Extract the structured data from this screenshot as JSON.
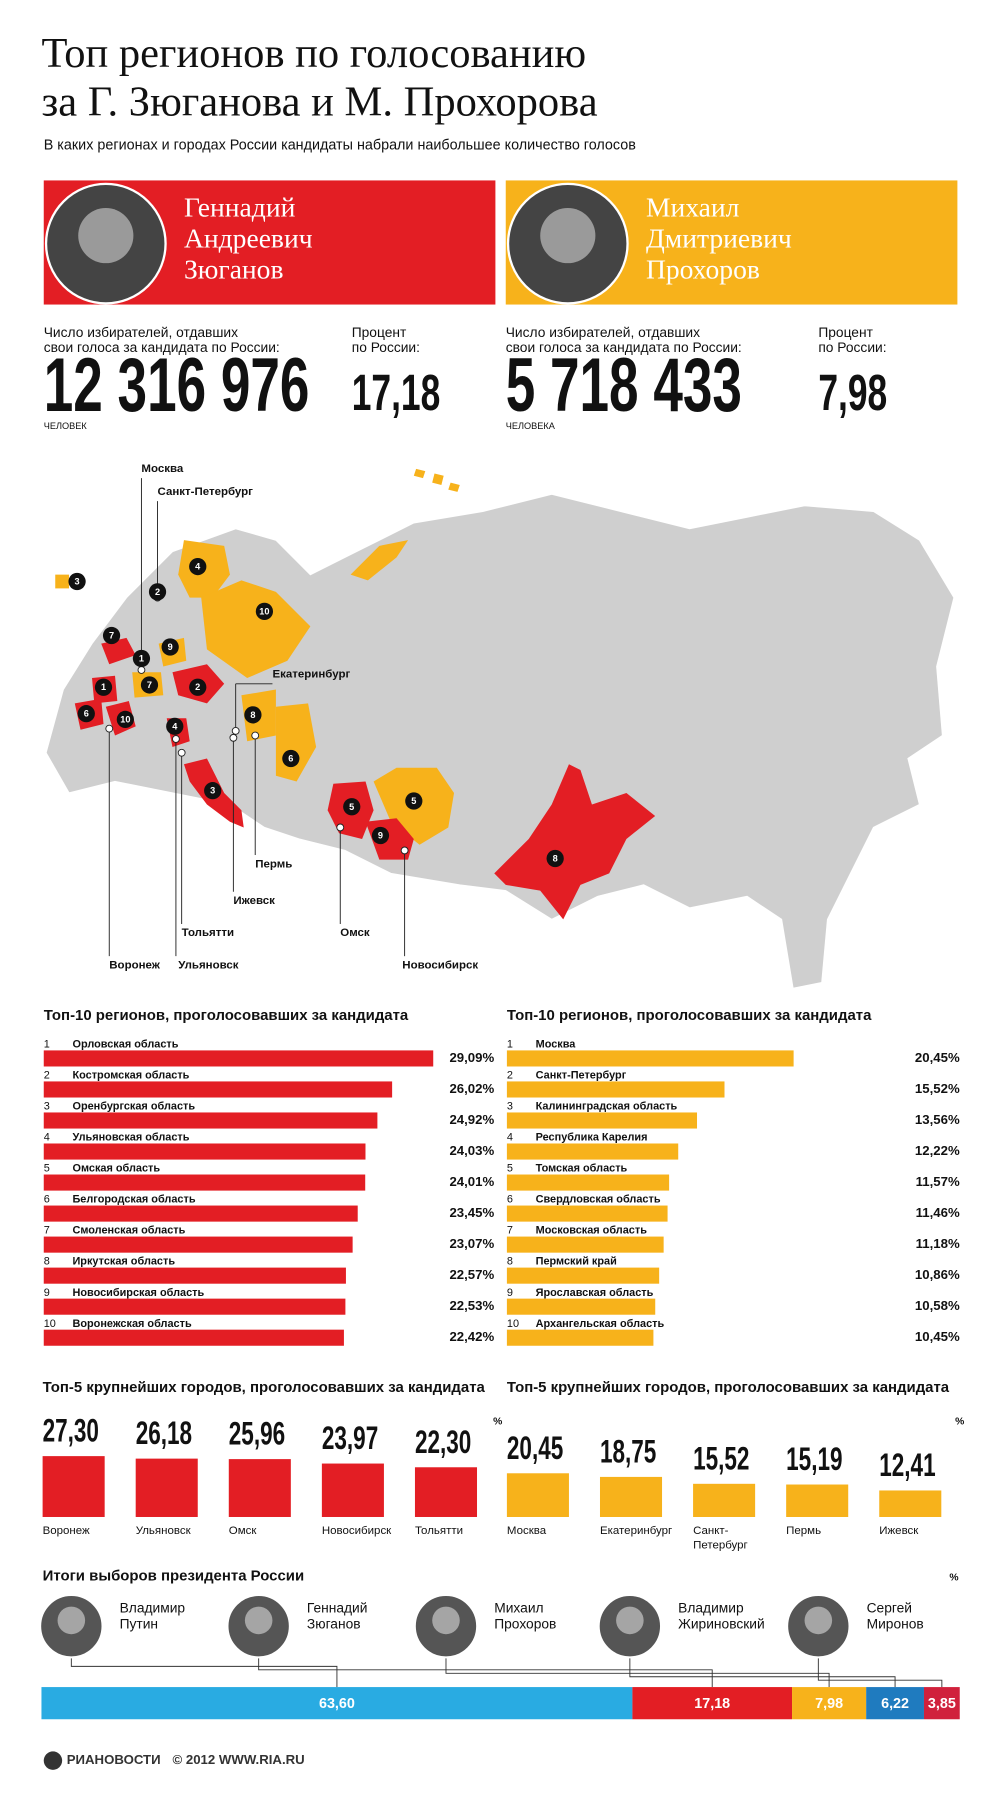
{
  "header": {
    "title": [
      "Топ регионов по голосованию",
      "за Г. Зюганова и М. Прохорова"
    ],
    "subtitle": "В каких регионах и городах России кандидаты набрали наибольшее количество голосов"
  },
  "candidates": [
    {
      "name": [
        "Геннадий",
        "Андреевич",
        "Зюганов"
      ],
      "color": "#e31e24",
      "voters_caption": [
        "Число избирателей, отдавших",
        "свои голоса за кандидата по России:"
      ],
      "voters": 12316976,
      "voters_label": "12 316 976",
      "voters_unit": "ЧЕЛОВЕК",
      "percent_caption": [
        "Процент",
        "по России:"
      ],
      "percent": 17.18,
      "percent_label": "17,18"
    },
    {
      "name": [
        "Михаил",
        "Дмитриевич",
        "Прохоров"
      ],
      "color": "#f7b21b",
      "voters_caption": [
        "Число избирателей, отдавших",
        "свои голоса за кандидата по России:"
      ],
      "voters": 5718433,
      "voters_label": "5 718 433",
      "voters_unit": "ЧЕЛОВЕКА",
      "percent_caption": [
        "Процент",
        "по России:"
      ],
      "percent": 7.98,
      "percent_label": "7,98"
    }
  ],
  "map": {
    "cities": [
      "Москва",
      "Санкт-Петербург",
      "Екатеринбург",
      "Пермь",
      "Ижевск",
      "Тольятти",
      "Ульяновск",
      "Воронеж",
      "Омск",
      "Новосибирск"
    ]
  },
  "top_regions": [
    {
      "title": "Топ-10 регионов, проголосовавших за кандидата",
      "color": "#e31e24",
      "items": [
        {
          "rank": 1,
          "name": "Орловская область",
          "value": 29.09,
          "value_label": "29,09%"
        },
        {
          "rank": 2,
          "name": "Костромская область",
          "value": 26.02,
          "value_label": "26,02%"
        },
        {
          "rank": 3,
          "name": "Оренбургская область",
          "value": 24.92,
          "value_label": "24,92%"
        },
        {
          "rank": 4,
          "name": "Ульяновская область",
          "value": 24.03,
          "value_label": "24,03%"
        },
        {
          "rank": 5,
          "name": "Омская область",
          "value": 24.01,
          "value_label": "24,01%"
        },
        {
          "rank": 6,
          "name": "Белгородская область",
          "value": 23.45,
          "value_label": "23,45%"
        },
        {
          "rank": 7,
          "name": "Смоленская область",
          "value": 23.07,
          "value_label": "23,07%"
        },
        {
          "rank": 8,
          "name": "Иркутская область",
          "value": 22.57,
          "value_label": "22,57%"
        },
        {
          "rank": 9,
          "name": "Новосибирская область",
          "value": 22.53,
          "value_label": "22,53%"
        },
        {
          "rank": 10,
          "name": "Воронежская область",
          "value": 22.42,
          "value_label": "22,42%"
        }
      ]
    },
    {
      "title": "Топ-10 регионов, проголосовавших за кандидата",
      "color": "#f7b21b",
      "items": [
        {
          "rank": 1,
          "name": "Москва",
          "value": 20.45,
          "value_label": "20,45%"
        },
        {
          "rank": 2,
          "name": "Санкт-Петербург",
          "value": 15.52,
          "value_label": "15,52%"
        },
        {
          "rank": 3,
          "name": "Калининградская область",
          "value": 13.56,
          "value_label": "13,56%"
        },
        {
          "rank": 4,
          "name": "Республика Карелия",
          "value": 12.22,
          "value_label": "12,22%"
        },
        {
          "rank": 5,
          "name": "Томская область",
          "value": 11.57,
          "value_label": "11,57%"
        },
        {
          "rank": 6,
          "name": "Свердловская область",
          "value": 11.46,
          "value_label": "11,46%"
        },
        {
          "rank": 7,
          "name": "Московская область",
          "value": 11.18,
          "value_label": "11,18%"
        },
        {
          "rank": 8,
          "name": "Пермский край",
          "value": 10.86,
          "value_label": "10,86%"
        },
        {
          "rank": 9,
          "name": "Ярославская область",
          "value": 10.58,
          "value_label": "10,58%"
        },
        {
          "rank": 10,
          "name": "Архангельская область",
          "value": 10.45,
          "value_label": "10,45%"
        }
      ]
    }
  ],
  "top_cities": [
    {
      "title": "Топ-5 крупнейших городов, проголосовавших за кандидата",
      "unit": "%",
      "color": "#e31e24",
      "items": [
        {
          "name": "Воронеж",
          "value": 27.3,
          "value_label": "27,30"
        },
        {
          "name": "Ульяновск",
          "value": 26.18,
          "value_label": "26,18"
        },
        {
          "name": "Омск",
          "value": 25.96,
          "value_label": "25,96"
        },
        {
          "name": "Новосибирск",
          "value": 23.97,
          "value_label": "23,97"
        },
        {
          "name": "Тольятти",
          "value": 22.3,
          "value_label": "22,30"
        }
      ]
    },
    {
      "title": "Топ-5 крупнейших городов, проголосовавших за кандидата",
      "unit": "%",
      "color": "#f7b21b",
      "items": [
        {
          "name": "Москва",
          "value": 20.45,
          "value_label": "20,45"
        },
        {
          "name": "Екатеринбург",
          "value": 18.75,
          "value_label": "18,75"
        },
        {
          "name": "Санкт-Петербург",
          "value": 15.52,
          "value_label": "15,52"
        },
        {
          "name": "Пермь",
          "value": 15.19,
          "value_label": "15,19"
        },
        {
          "name": "Ижевск",
          "value": 12.41,
          "value_label": "12,41"
        }
      ]
    }
  ],
  "results": {
    "title": "Итоги выборов президента России",
    "unit": "%",
    "items": [
      {
        "first": "Владимир",
        "last": "Путин",
        "color": "#29abe2",
        "value": 63.6,
        "value_label": "63,60"
      },
      {
        "first": "Геннадий",
        "last": "Зюганов",
        "color": "#e31e24",
        "value": 17.18,
        "value_label": "17,18"
      },
      {
        "first": "Михаил",
        "last": "Прохоров",
        "color": "#f7b21b",
        "value": 7.98,
        "value_label": "7,98"
      },
      {
        "first": "Владимир",
        "last": "Жириновский",
        "color": "#1f7bbf",
        "value": 6.22,
        "value_label": "6,22"
      },
      {
        "first": "Сергей",
        "last": "Миронов",
        "color": "#d0213c",
        "value": 3.85,
        "value_label": "3,85"
      }
    ]
  },
  "footer": {
    "logo": "РИАНОВОСТИ",
    "text": "© 2012 WWW.RIA.RU"
  }
}
